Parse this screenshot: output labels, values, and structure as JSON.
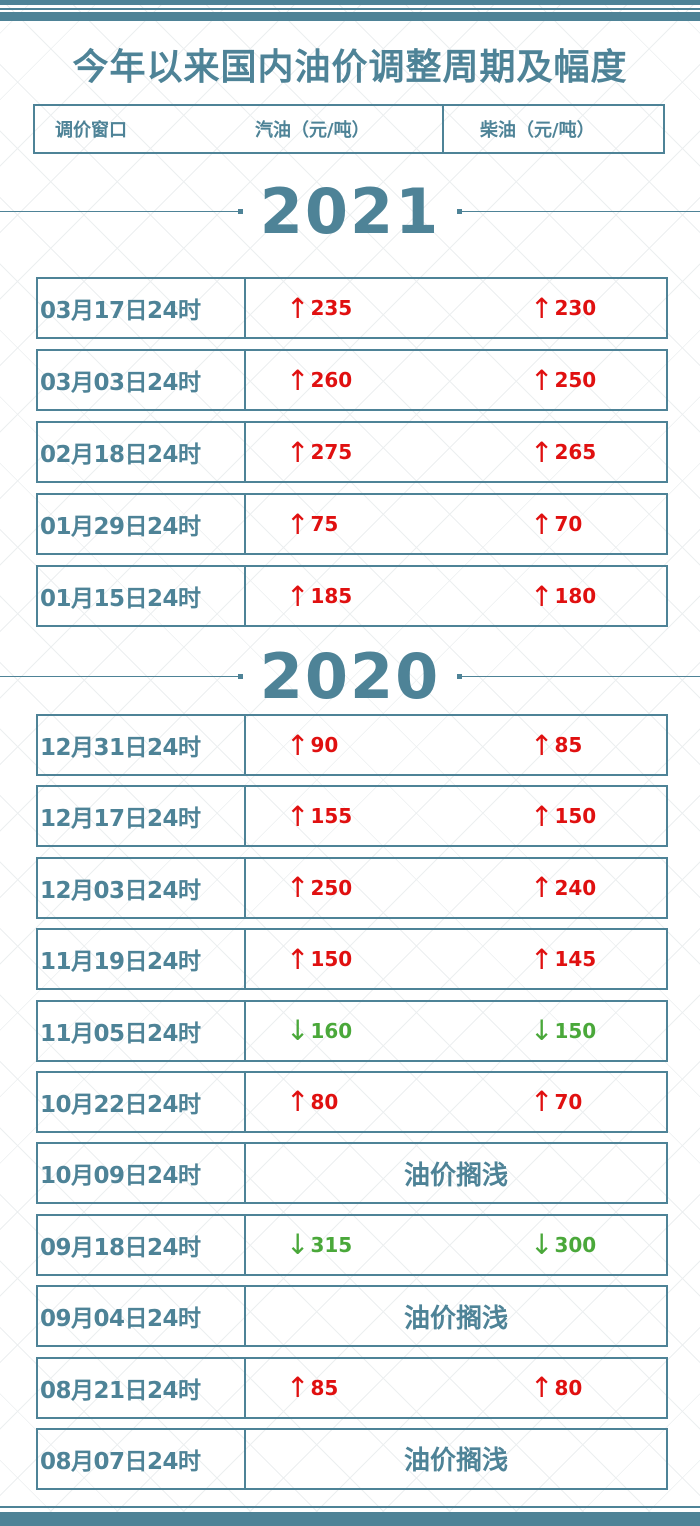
{
  "title": "今年以来国内油价调整周期及幅度",
  "header": {
    "col1": "调价窗口",
    "col2": "汽油（元/吨）",
    "col3": "柴油（元/吨）"
  },
  "colors": {
    "theme": "#4e8397",
    "up": "#e01010",
    "down": "#4aa83a"
  },
  "sections": [
    {
      "year": "2021",
      "rows": [
        {
          "date": "03月17日24时",
          "dir": "up",
          "gasoline": "235",
          "diesel": "230"
        },
        {
          "date": "03月03日24时",
          "dir": "up",
          "gasoline": "260",
          "diesel": "250"
        },
        {
          "date": "02月18日24时",
          "dir": "up",
          "gasoline": "275",
          "diesel": "265"
        },
        {
          "date": "01月29日24时",
          "dir": "up",
          "gasoline": "75",
          "diesel": "70"
        },
        {
          "date": "01月15日24时",
          "dir": "up",
          "gasoline": "185",
          "diesel": "180"
        }
      ]
    },
    {
      "year": "2020",
      "rows": [
        {
          "date": "12月31日24时",
          "dir": "up",
          "gasoline": "90",
          "diesel": "85"
        },
        {
          "date": "12月17日24时",
          "dir": "up",
          "gasoline": "155",
          "diesel": "150"
        },
        {
          "date": "12月03日24时",
          "dir": "up",
          "gasoline": "250",
          "diesel": "240"
        },
        {
          "date": "11月19日24时",
          "dir": "up",
          "gasoline": "150",
          "diesel": "145"
        },
        {
          "date": "11月05日24时",
          "dir": "down",
          "gasoline": "160",
          "diesel": "150"
        },
        {
          "date": "10月22日24时",
          "dir": "up",
          "gasoline": "80",
          "diesel": "70"
        },
        {
          "date": "10月09日24时",
          "dir": "hold",
          "note": "油价搁浅"
        },
        {
          "date": "09月18日24时",
          "dir": "down",
          "gasoline": "315",
          "diesel": "300"
        },
        {
          "date": "09月04日24时",
          "dir": "hold",
          "note": "油价搁浅"
        },
        {
          "date": "08月21日24时",
          "dir": "up",
          "gasoline": "85",
          "diesel": "80"
        },
        {
          "date": "08月07日24时",
          "dir": "hold",
          "note": "油价搁浅"
        }
      ]
    }
  ]
}
